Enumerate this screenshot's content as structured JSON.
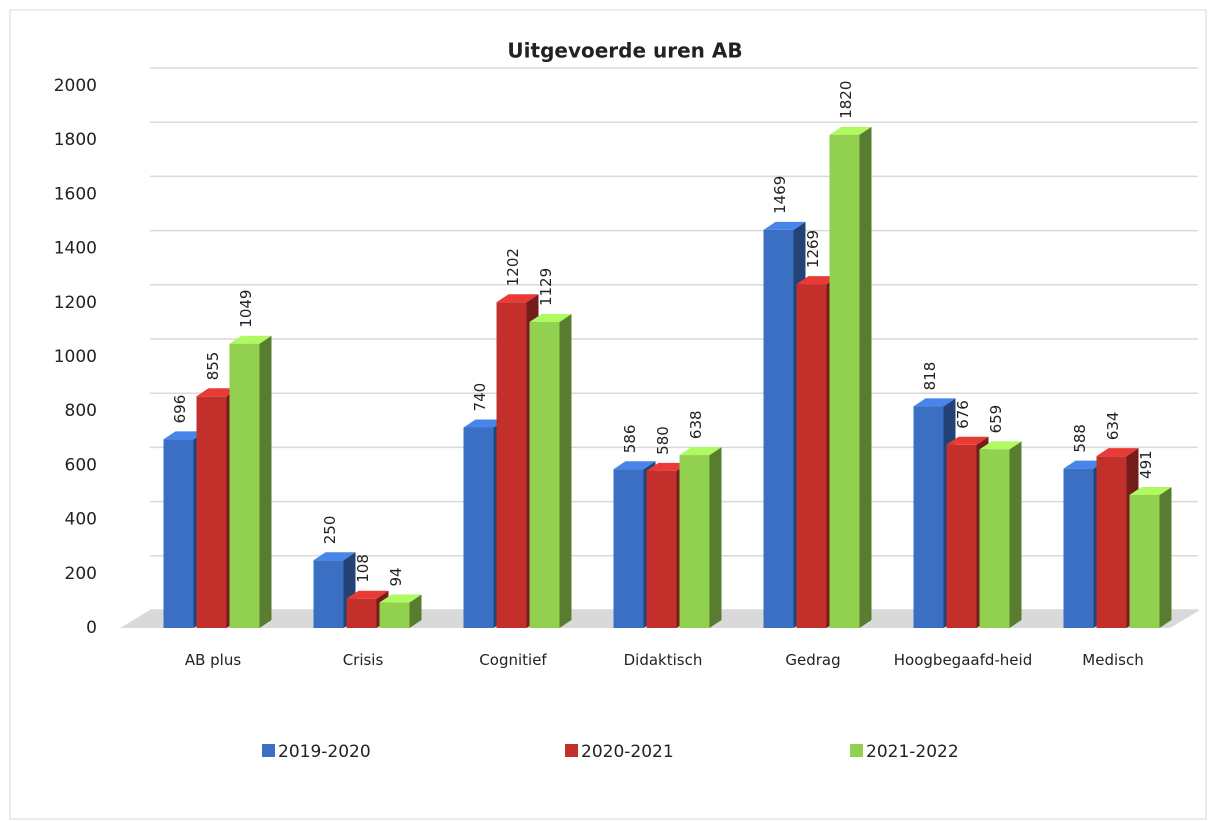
{
  "chart_data": {
    "type": "bar3d",
    "title": "Uitgevoerde uren AB",
    "categories": [
      "AB plus",
      "Crisis",
      "Cognitief",
      "Didaktisch",
      "Gedrag",
      "Hoogbegaafd-heid",
      "Medisch"
    ],
    "series": [
      {
        "name": "2019-2020",
        "color": "#3b6fc4",
        "values": [
          696,
          250,
          740,
          586,
          1469,
          818,
          588
        ]
      },
      {
        "name": "2020-2021",
        "color": "#c3302c",
        "values": [
          855,
          108,
          1202,
          580,
          1269,
          676,
          634
        ]
      },
      {
        "name": "2021-2022",
        "color": "#92d050",
        "values": [
          1049,
          94,
          1129,
          638,
          1820,
          659,
          491
        ]
      }
    ],
    "ylim": [
      0,
      2000
    ],
    "yticks": [
      0,
      200,
      400,
      600,
      800,
      1000,
      1200,
      1400,
      1600,
      1800,
      2000
    ],
    "grid": true,
    "legend": "bottom"
  }
}
